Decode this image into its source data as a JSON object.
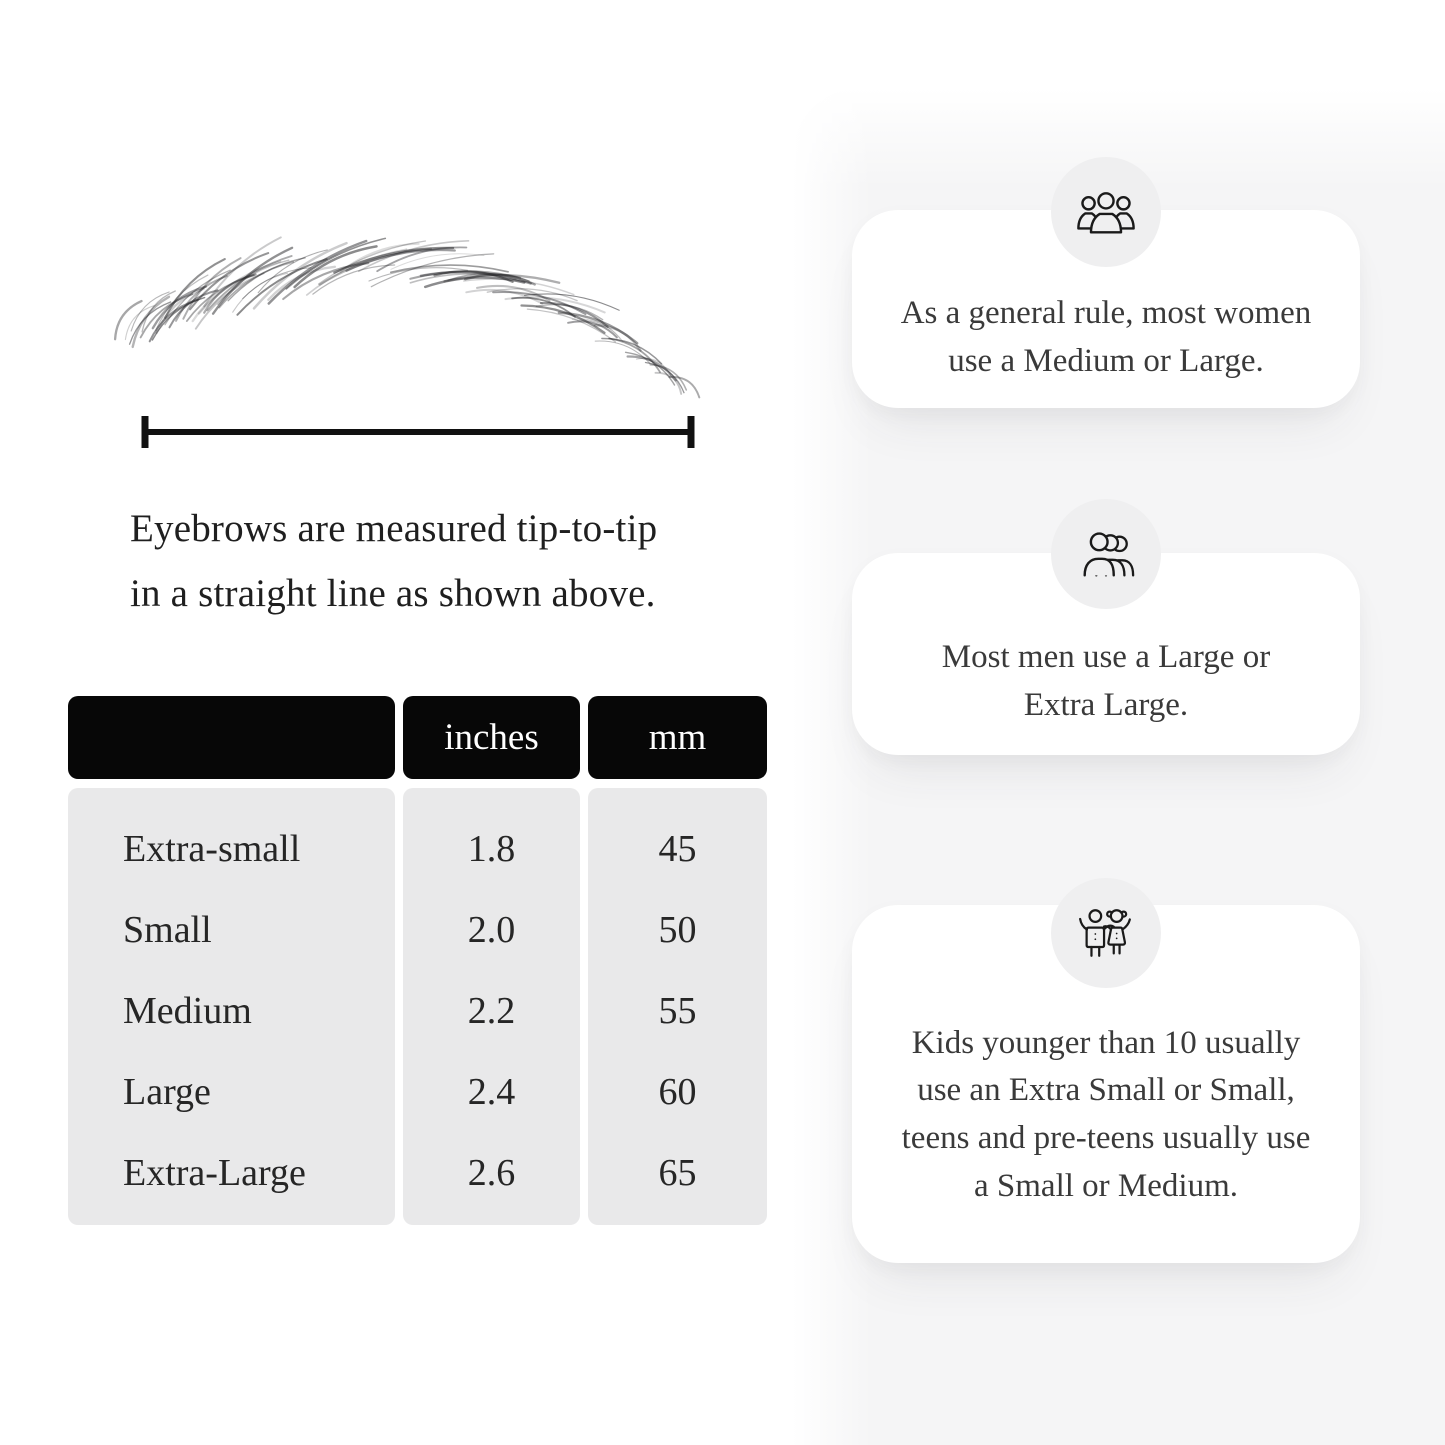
{
  "colors": {
    "panel_bg": "#f5f5f6",
    "card_bg": "#ffffff",
    "badge_bg": "#efeff0",
    "icon_stroke": "#1a1a1a",
    "table_header_bg": "#070707",
    "table_header_text": "#ffffff",
    "table_body_bg": "#e9e9ea",
    "text_primary": "#222222",
    "text_secondary": "#3a3a3a"
  },
  "measurement": {
    "caption_lines": [
      "Eyebrows are measured tip-to-tip",
      "in a straight line as shown above."
    ]
  },
  "size_table": {
    "columns": [
      "",
      "inches",
      "mm"
    ],
    "rows": [
      {
        "label": "Extra-small",
        "inches": "1.8",
        "mm": "45"
      },
      {
        "label": "Small",
        "inches": "2.0",
        "mm": "50"
      },
      {
        "label": "Medium",
        "inches": "2.2",
        "mm": "55"
      },
      {
        "label": "Large",
        "inches": "2.4",
        "mm": "60"
      },
      {
        "label": "Extra-Large",
        "inches": "2.6",
        "mm": "65"
      }
    ]
  },
  "tips": [
    {
      "icon": "women-group-icon",
      "text": "As a general rule, most women use a Medium or Large."
    },
    {
      "icon": "men-group-icon",
      "text": "Most men use a Large or Extra Large."
    },
    {
      "icon": "kids-icon",
      "text": "Kids younger than 10 usually use an Extra Small or Small, teens and pre-teens usually use a Small or Medium."
    }
  ]
}
